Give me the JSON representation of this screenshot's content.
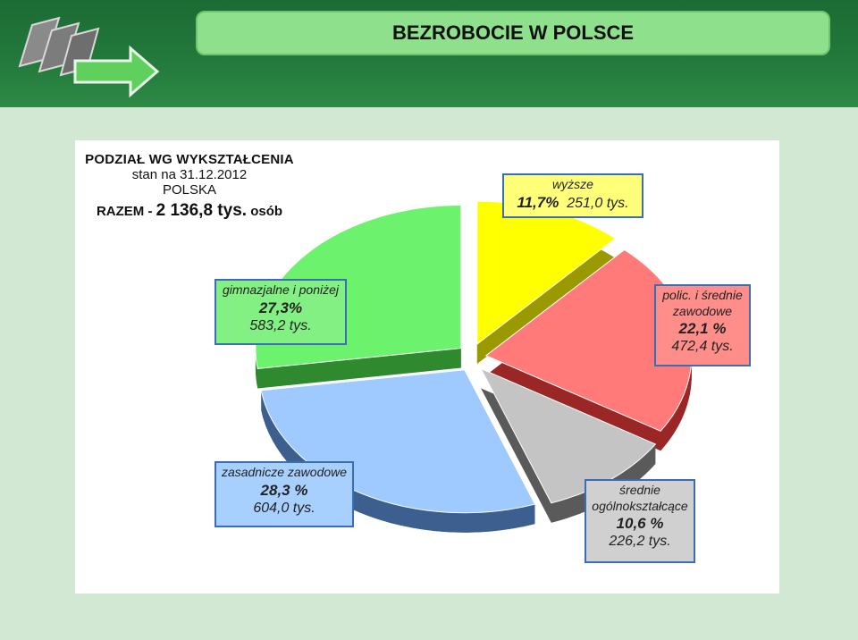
{
  "header": {
    "title": "BEZROBOCIE W POLSCE",
    "logo_icon": "arrows-logo-icon"
  },
  "info": {
    "line1": "PODZIAŁ WG WYKSZTAŁCENIA",
    "line2": "stan na 31.12.2012",
    "line3": "POLSKA",
    "line4_prefix": "RAZEM - ",
    "line4_value": "2 136,8 tys.",
    "line4_suffix": " osób"
  },
  "chart_data": {
    "type": "pie",
    "slices": [
      {
        "name": "wyższe",
        "percent_label": "11,7%",
        "value_label": "251,0 tys.",
        "value": 251.0,
        "percent": 11.7,
        "color": "#ffff00"
      },
      {
        "name": "polic. i średnie zawodowe",
        "name_line1": "polic. i średnie",
        "name_line2": "zawodowe",
        "percent_label": "22,1 %",
        "value_label": "472,4 tys.",
        "value": 472.4,
        "percent": 22.1,
        "color": "#ff7a78"
      },
      {
        "name": "średnie ogólnokształcące",
        "name_line1": "średnie",
        "name_line2": "ogólnokształcące",
        "percent_label": "10,6 %",
        "value_label": "226,2 tys.",
        "value": 226.2,
        "percent": 10.6,
        "color": "#c4c4c4"
      },
      {
        "name": "zasadnicze zawodowe",
        "percent_label": "28,3 %",
        "value_label": "604,0 tys.",
        "value": 604.0,
        "percent": 28.3,
        "color": "#9ecaff"
      },
      {
        "name": "gimnazjalne i poniżej",
        "percent_label": "27,3%",
        "value_label": "583,2 tys.",
        "value": 583.2,
        "percent": 27.3,
        "color": "#6cf26c"
      }
    ]
  }
}
